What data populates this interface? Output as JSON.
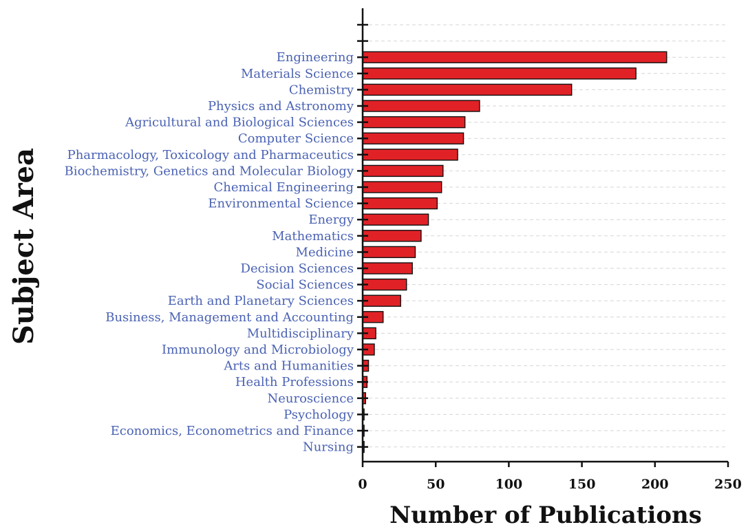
{
  "chart_data": {
    "type": "bar",
    "orientation": "horizontal",
    "xlabel": "Number of Publications",
    "ylabel": "Subject Area",
    "xlim": [
      0,
      250
    ],
    "xticks": [
      0,
      50,
      100,
      150,
      200,
      250
    ],
    "grid": "horizontal dashed",
    "colors": {
      "bar": "#e02227",
      "label": "#4a62b3",
      "axis": "#111111"
    },
    "categories": [
      "Engineering",
      "Materials Science",
      "Chemistry",
      "Physics and Astronomy",
      "Agricultural and Biological Sciences",
      "Computer Science",
      "Pharmacology, Toxicology and Pharmaceutics",
      "Biochemistry, Genetics and Molecular Biology",
      "Chemical Engineering",
      "Environmental Science",
      "Energy",
      "Mathematics",
      "Medicine",
      "Decision Sciences",
      "Social Sciences",
      "Earth and Planetary Sciences",
      "Business, Management and Accounting",
      "Multidisciplinary",
      "Immunology and Microbiology",
      "Arts and Humanities",
      "Health Professions",
      "Neuroscience",
      "Psychology",
      "Economics, Econometrics and Finance",
      "Nursing"
    ],
    "values": [
      208,
      187,
      143,
      80,
      70,
      69,
      65,
      55,
      54,
      51,
      45,
      40,
      36,
      34,
      30,
      26,
      14,
      9,
      8,
      4,
      3,
      2,
      1,
      1,
      1
    ],
    "empty_slots_above": 2
  }
}
